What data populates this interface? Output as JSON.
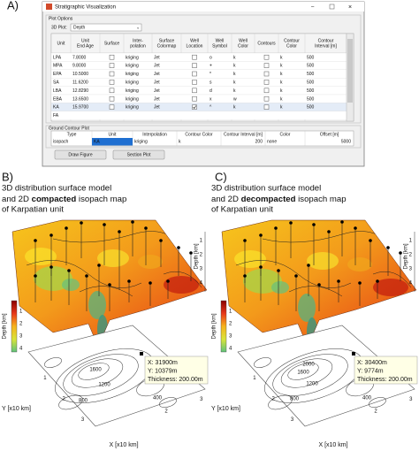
{
  "panel_a": {
    "label": "A)",
    "window_title": "Stratigraphic Visualization",
    "plot_options": {
      "group_label": "Plot Options",
      "plot_label": "3D Plot:",
      "plot_value": "Depth",
      "headers": [
        [
          "Unit"
        ],
        [
          "Unit",
          "End Age"
        ],
        [
          "Surface"
        ],
        [
          "Inter-",
          "polation"
        ],
        [
          "Surface",
          "Colormap"
        ],
        [
          "Well",
          "Location"
        ],
        [
          "Well",
          "Symbol"
        ],
        [
          "Well",
          "Color"
        ],
        [
          "Contours"
        ],
        [
          "Contour",
          "Color"
        ],
        [
          "Contour",
          "Interval [m]"
        ]
      ],
      "rows": [
        [
          "LPA",
          "7.8000",
          "kriging",
          "Jet",
          "o",
          "k",
          "k",
          "500"
        ],
        [
          "MPA",
          "9.8000",
          "kriging",
          "Jet",
          "+",
          "k",
          "k",
          "500"
        ],
        [
          "EPA",
          "10.5000",
          "kriging",
          "Jet",
          "*",
          "k",
          "k",
          "500"
        ],
        [
          "SA",
          "11.6200",
          "kriging",
          "Jet",
          "s",
          "k",
          "k",
          "500"
        ],
        [
          "LBA",
          "12.8290",
          "kriging",
          "Jet",
          "d",
          "k",
          "k",
          "500"
        ],
        [
          "EBA",
          "13.6500",
          "kriging",
          "Jet",
          "x",
          "w",
          "k",
          "500"
        ],
        [
          "KA",
          "15.9700",
          "kriging",
          "Jet",
          "^",
          "k",
          "k",
          "500"
        ],
        [
          "FA"
        ]
      ]
    },
    "ground_contour": {
      "group_label": "Ground Contour Plot",
      "headers": [
        "Type",
        "Unit",
        "Interpolation",
        "Contour Color",
        "Contour Interval [m]",
        "Color",
        "Offset [m]"
      ],
      "row": [
        "isopach",
        "KA",
        "kriging",
        "k",
        "200",
        "none",
        "5000"
      ]
    },
    "buttons": [
      "Draw Figure",
      "Section Plot"
    ]
  },
  "panel_b": {
    "label": "B)",
    "title_line1": "3D distribution surface model",
    "title_line2": {
      "pre": "and 2D ",
      "em": "compacted",
      "post": " isopach map"
    },
    "title_line3": "of Karpatian unit",
    "depth_axis_label": "Depth [km]",
    "depth_ticks": [
      1,
      2,
      3,
      4
    ],
    "colorbar_label": "Depth [km]",
    "colorbar_ticks": [
      1,
      2,
      3,
      4
    ],
    "contour_labels": [
      "1600",
      "1200",
      "800",
      "400"
    ],
    "tooltip": [
      "X: 31900m",
      "Y: 10379m",
      "Thickness: 200.00m"
    ],
    "y_axis_label": "Y [x10 km]",
    "y_ticks": [
      1,
      2,
      3
    ],
    "x_axis_label": "X [x10 km]",
    "x_ticks": [
      2,
      3
    ]
  },
  "panel_c": {
    "label": "C)",
    "title_line1": "3D distribution surface model",
    "title_line2": {
      "pre": "and 2D ",
      "em": "decompacted",
      "post": " isopach map"
    },
    "title_line3": "of Karpatian unit",
    "depth_axis_label": "Depth [km]",
    "depth_ticks": [
      1,
      2,
      3,
      4
    ],
    "colorbar_label": "Depth [km]",
    "colorbar_ticks": [
      1,
      2,
      3,
      4
    ],
    "contour_labels": [
      "2000",
      "1600",
      "1200",
      "800",
      "400"
    ],
    "tooltip": [
      "X: 30400m",
      "Y: 9774m",
      "Thickness: 200.00m"
    ],
    "y_axis_label": "Y [x10 km]",
    "y_ticks": [
      1,
      2,
      3
    ],
    "x_axis_label": "X [x10 km]",
    "x_ticks": [
      2,
      3
    ]
  }
}
